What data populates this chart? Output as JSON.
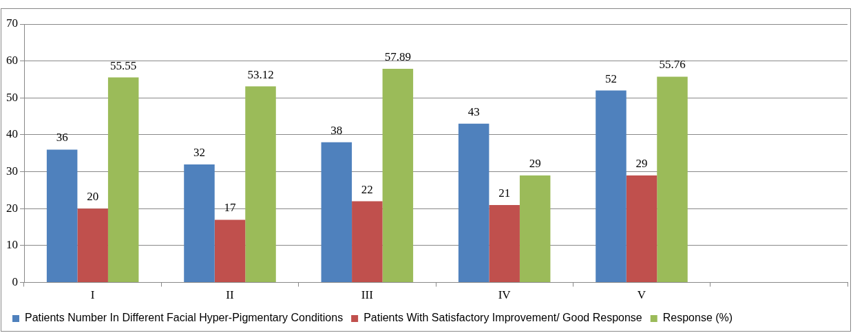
{
  "chart_data": {
    "type": "bar",
    "categories": [
      "I",
      "II",
      "III",
      "IV",
      "V",
      null
    ],
    "series": [
      {
        "name": "Patients Number In Different Facial Hyper-Pigmentary Conditions",
        "color": "#4f81bd",
        "values": [
          36,
          32,
          38,
          43,
          52,
          null
        ]
      },
      {
        "name": "Patients With Satisfactory Improvement/ Good Response",
        "color": "#c0504d",
        "values": [
          20,
          17,
          22,
          21,
          29,
          null
        ]
      },
      {
        "name": "Response (%)",
        "color": "#9bbb59",
        "values": [
          55.55,
          53.12,
          57.89,
          29,
          55.76,
          null
        ]
      }
    ],
    "ylim": [
      0,
      70
    ],
    "yticks": [
      0,
      10,
      20,
      30,
      40,
      50,
      60,
      70
    ],
    "grid": "y",
    "legend": "bottom",
    "data_labels": true
  }
}
